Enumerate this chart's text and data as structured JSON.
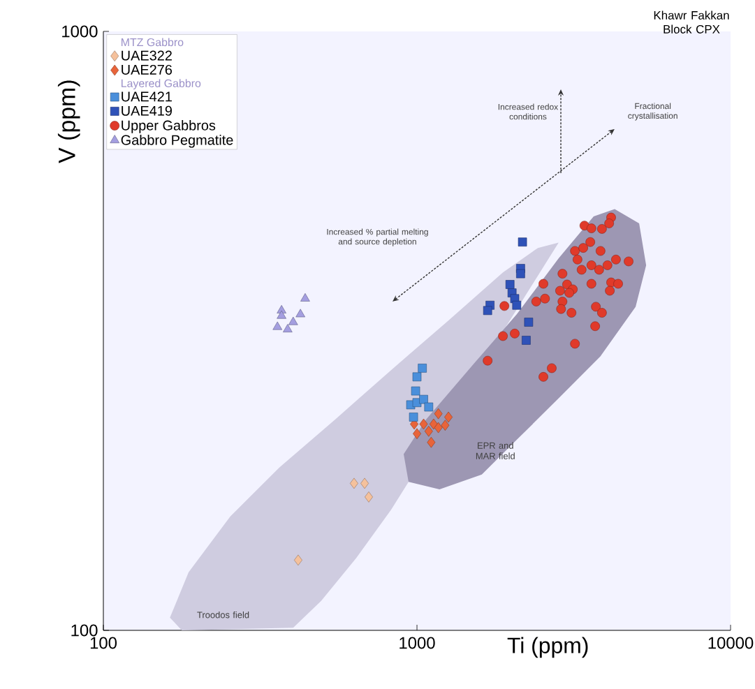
{
  "chart_data": {
    "type": "scatter",
    "title": "Khawr Fakkan Block CPX",
    "xlabel": "Ti (ppm)",
    "ylabel": "V (ppm)",
    "xlim": [
      100,
      10000
    ],
    "ylim": [
      100,
      1000
    ],
    "xticks": [
      100,
      1000,
      10000
    ],
    "yticks": [
      100,
      1000
    ],
    "log": "xy",
    "legend": "top left",
    "annotations": [
      "MTZ Gabbro",
      "Layered Gabbro",
      "Troodos field",
      "EPR and MAR field",
      "Increased redox conditions",
      "Fractional crystallisation",
      "Increased % partial melting and source depletion"
    ],
    "series": [
      {
        "type": "area",
        "color": "#cfcce0",
        "x": [
          163,
          187,
          254,
          364,
          549,
          827,
          1250,
          1880,
          2430,
          2830,
          null,
          null,
          null,
          null,
          null,
          827,
          640,
          495,
          403,
          178
        ],
        "values": [
          105,
          125,
          155,
          187,
          225,
          272,
          328,
          396,
          435,
          444,
          null,
          null,
          null,
          null,
          null,
          159,
          132,
          112,
          101,
          100
        ]
      },
      {
        "type": "area",
        "color": "#9d97b3",
        "x": [
          4270,
          5110,
          5380,
          4980,
          3850,
          2830,
          2080,
          1610,
          1180,
          940,
          907,
          1070,
          1530,
          2080,
          2830,
          3660
        ],
        "values": [
          505,
          478,
          407,
          347,
          287,
          244,
          208,
          182,
          172,
          177,
          197,
          225,
          280,
          337,
          418,
          491
        ]
      },
      {
        "name": "UAE322",
        "color": "#f5c19c",
        "marker": "diamond",
        "x": [
          630,
          681,
          702,
          418
        ],
        "values": [
          176,
          176,
          167,
          131
        ]
      },
      {
        "name": "UAE276",
        "color": "#e8643a",
        "marker": "diamond",
        "x": [
          980,
          1050,
          1170,
          1260,
          1000,
          1110,
          1130,
          1230,
          1090,
          1170
        ],
        "values": [
          221,
          221,
          230,
          227,
          213,
          206,
          221,
          220,
          215,
          218
        ]
      },
      {
        "name": "UAE421",
        "color": "#4a8fdb",
        "marker": "square",
        "x": [
          1040,
          1000,
          990,
          955,
          1000,
          1050,
          1090,
          975
        ],
        "values": [
          274,
          265,
          251,
          238,
          240,
          243,
          236,
          227
        ]
      },
      {
        "name": "UAE419",
        "color": "#2f52b8",
        "marker": "square",
        "x": [
          2170,
          2140,
          2140,
          1980,
          2010,
          2050,
          2080,
          1710,
          1680,
          2270,
          2230
        ],
        "values": [
          445,
          402,
          394,
          378,
          366,
          358,
          349,
          349,
          342,
          327,
          305
        ]
      },
      {
        "name": "Upper Gabbros",
        "color": "#e03a2a",
        "marker": "circle",
        "x": [
          4160,
          4100,
          3420,
          3600,
          3890,
          3570,
          3190,
          3390,
          3850,
          3250,
          3600,
          3350,
          3810,
          4050,
          4310,
          4730,
          2910,
          2530,
          3010,
          3140,
          2860,
          3060,
          3600,
          4160,
          4380,
          4120,
          2400,
          2560,
          2910,
          2880,
          3110,
          3720,
          3890,
          3700,
          1900,
          1880,
          2050,
          3190,
          1680,
          2690,
          2530
        ],
        "values": [
          489,
          478,
          474,
          469,
          468,
          445,
          430,
          435,
          430,
          416,
          407,
          400,
          400,
          407,
          416,
          413,
          394,
          379,
          378,
          371,
          369,
          366,
          379,
          381,
          379,
          369,
          354,
          358,
          354,
          344,
          339,
          347,
          339,
          322,
          348,
          310,
          313,
          301,
          282,
          274,
          265
        ]
      },
      {
        "name": "Gabbro Pegmatite",
        "color": "#a49ee0",
        "marker": "triangle",
        "x": [
          440,
          370,
          370,
          425,
          403,
          359,
          387
        ],
        "values": [
          358,
          342,
          335,
          337,
          327,
          321,
          318
        ]
      }
    ]
  }
}
